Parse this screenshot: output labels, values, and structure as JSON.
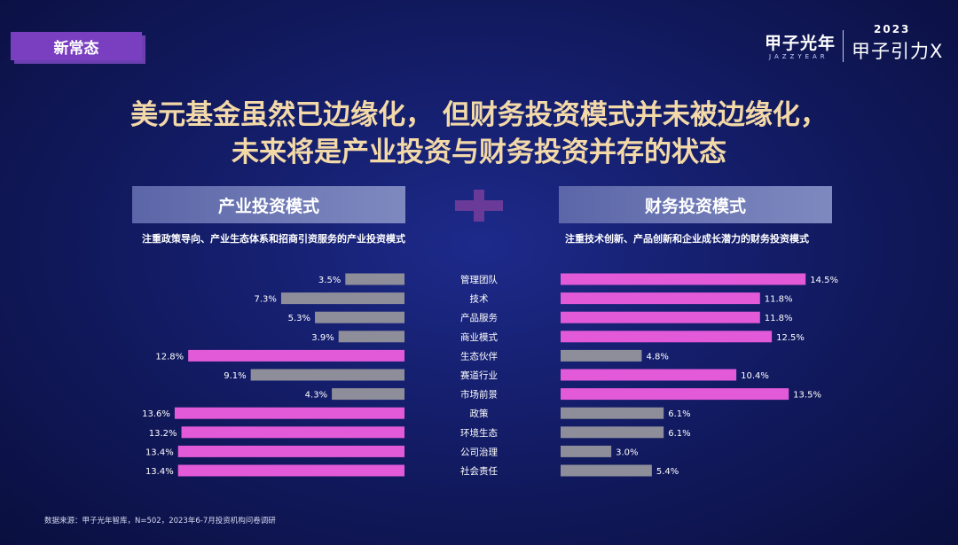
{
  "tag": "新常态",
  "logo": {
    "cn": "甲子光年",
    "en": "JAZZYEAR",
    "year": "2023",
    "brand": "甲子引力X"
  },
  "title": {
    "line1": "美元基金虽然已边缘化， 但财务投资模式并未被边缘化，",
    "line2": "未来将是产业投资与财务投资并存的状态"
  },
  "left": {
    "header": "产业投资模式",
    "desc": "注重政策导向、产业生态体系和招商引资服务的产业投资模式"
  },
  "right": {
    "header": "财务投资模式",
    "desc": "注重技术创新、产品创新和企业成长潜力的财务投资模式"
  },
  "source": "数据来源：甲子光年智库，N=502，2023年6-7月投资机构问卷调研",
  "colors": {
    "highlight": "#e25ad8",
    "normal": "#8e8e9a",
    "title": "#f3d9a8"
  },
  "chart_data": {
    "type": "bar",
    "categories": [
      "管理团队",
      "技术",
      "产品服务",
      "商业模式",
      "生态伙伴",
      "赛道行业",
      "市场前景",
      "政策",
      "环境生态",
      "公司治理",
      "社会责任"
    ],
    "series": [
      {
        "name": "产业投资模式",
        "values": [
          3.5,
          7.3,
          5.3,
          3.9,
          12.8,
          9.1,
          4.3,
          13.6,
          13.2,
          13.4,
          13.4
        ],
        "labels": [
          "3.5%",
          "7.3%",
          "5.3%",
          "3.9%",
          "12.8%",
          "9.1%",
          "4.3%",
          "13.6%",
          "13.2%",
          "13.4%",
          "13.4%"
        ],
        "highlight": [
          false,
          false,
          false,
          false,
          true,
          false,
          false,
          true,
          true,
          true,
          true
        ]
      },
      {
        "name": "财务投资模式",
        "values": [
          14.5,
          11.8,
          11.8,
          12.5,
          4.8,
          10.4,
          13.5,
          6.1,
          6.1,
          3.0,
          5.4
        ],
        "labels": [
          "14.5%",
          "11.8%",
          "11.8%",
          "12.5%",
          "4.8%",
          "10.4%",
          "13.5%",
          "6.1%",
          "6.1%",
          "3.0%",
          "5.4%"
        ],
        "highlight": [
          true,
          true,
          true,
          true,
          false,
          true,
          true,
          false,
          false,
          false,
          false
        ]
      }
    ],
    "unit": "%"
  }
}
